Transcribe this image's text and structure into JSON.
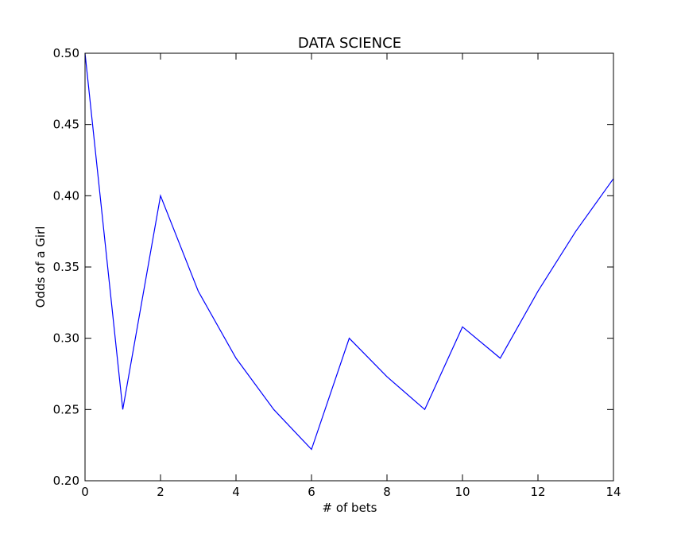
{
  "chart_data": {
    "type": "line",
    "title": "DATA SCIENCE",
    "xlabel": "# of bets",
    "ylabel": "Odds of a Girl",
    "xlim": [
      0,
      14
    ],
    "ylim": [
      0.2,
      0.5
    ],
    "xticks": [
      "0",
      "2",
      "4",
      "6",
      "8",
      "10",
      "12",
      "14"
    ],
    "yticks": [
      "0.20",
      "0.25",
      "0.30",
      "0.35",
      "0.40",
      "0.45",
      "0.50"
    ],
    "grid": false,
    "series": [
      {
        "color": "#0000ff",
        "x": [
          0,
          1,
          2,
          3,
          4,
          5,
          6,
          7,
          8,
          9,
          10,
          11,
          12,
          13,
          14
        ],
        "y": [
          0.5,
          0.25,
          0.4,
          0.333,
          0.286,
          0.25,
          0.222,
          0.3,
          0.273,
          0.25,
          0.308,
          0.286,
          0.333,
          0.375,
          0.412
        ]
      }
    ]
  }
}
